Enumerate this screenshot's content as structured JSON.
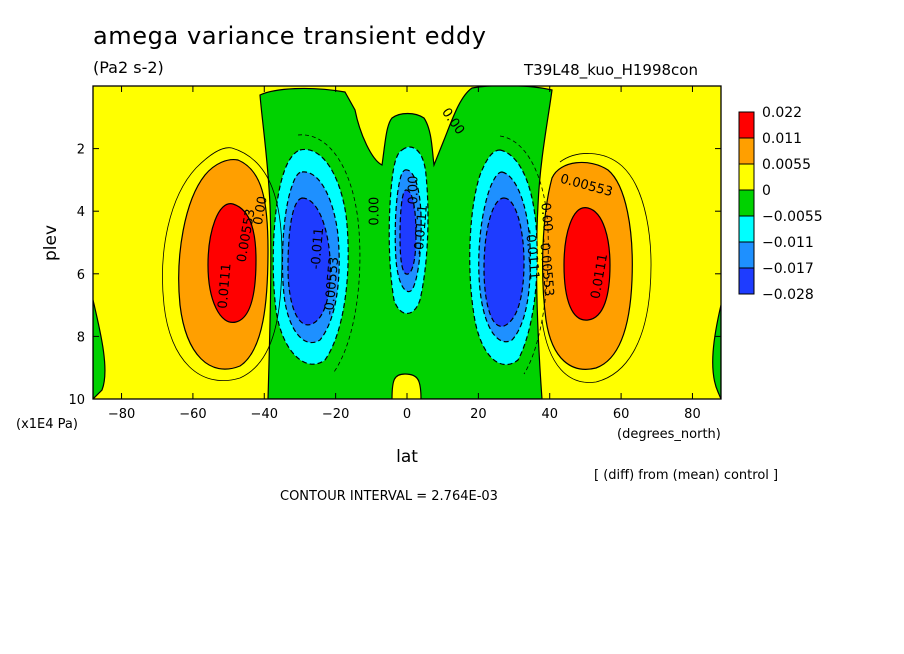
{
  "header": {
    "title": "amega variance transient eddy",
    "units": "(Pa2 s-2)",
    "run_id": "T39L48_kuo_H1998con"
  },
  "footer": {
    "diff_note": "[ (diff) from (mean) control ]",
    "contour_interval": "CONTOUR INTERVAL = 2.764E-03"
  },
  "colors": {
    "red": "#ff0000",
    "orange": "#ff9f00",
    "yellow": "#ffff00",
    "green": "#00d200",
    "cyan": "#00ffff",
    "midblue": "#1e90ff",
    "blue": "#1e3cff",
    "frame": "#000000"
  },
  "chart_data": {
    "type": "heatmap",
    "title": "amega variance transient eddy",
    "subtitle": "(Pa2 s-2)",
    "xlabel": "lat",
    "xunits": "(degrees_north)",
    "ylabel": "plev",
    "yunits": "(x1E4 Pa)",
    "xlim": [
      -88,
      88
    ],
    "ylim": [
      0,
      10
    ],
    "y_inverted": true,
    "xticks": [
      -80,
      -60,
      -40,
      -20,
      0,
      20,
      40,
      60,
      80
    ],
    "yticks": [
      2,
      4,
      6,
      8,
      10
    ],
    "colorbar": {
      "levels": [
        "0.022",
        "0.011",
        "0.0055",
        "0",
        "−0.0055",
        "−0.011",
        "−0.017",
        "−0.028"
      ],
      "colors": [
        "#ff0000",
        "#ff9f00",
        "#ffff00",
        "#00d200",
        "#00ffff",
        "#1e90ff",
        "#1e3cff"
      ]
    },
    "contour_labels": [
      {
        "text": "0.0111",
        "lat": -50,
        "plev": 6.4,
        "angle": -85
      },
      {
        "text": "0.00553",
        "lat": -44,
        "plev": 4.8,
        "angle": -80
      },
      {
        "text": "0.00",
        "lat": -40,
        "plev": 4.0,
        "angle": -80
      },
      {
        "text": "-0.011",
        "lat": -24,
        "plev": 5.2,
        "angle": -85
      },
      {
        "text": "-0.00553",
        "lat": -20,
        "plev": 6.4,
        "angle": -85
      },
      {
        "text": "0.00",
        "lat": -8,
        "plev": 4.0,
        "angle": -90
      },
      {
        "text": "-0.00",
        "lat": 3,
        "plev": 3.4,
        "angle": -90
      },
      {
        "text": "-0.0111",
        "lat": 5,
        "plev": 4.6,
        "angle": -85
      },
      {
        "text": "0.00",
        "lat": 12,
        "plev": 1.2,
        "angle": 55
      },
      {
        "text": "-0.0111",
        "lat": 34,
        "plev": 5.4,
        "angle": 85
      },
      {
        "text": "-0.00553",
        "lat": 38,
        "plev": 5.8,
        "angle": 85
      },
      {
        "text": "0.00",
        "lat": 38,
        "plev": 4.2,
        "angle": 85
      },
      {
        "text": "0.00553",
        "lat": 50,
        "plev": 3.3,
        "angle": 15
      },
      {
        "text": "0.0111",
        "lat": 55,
        "plev": 6.1,
        "angle": -80
      }
    ]
  }
}
